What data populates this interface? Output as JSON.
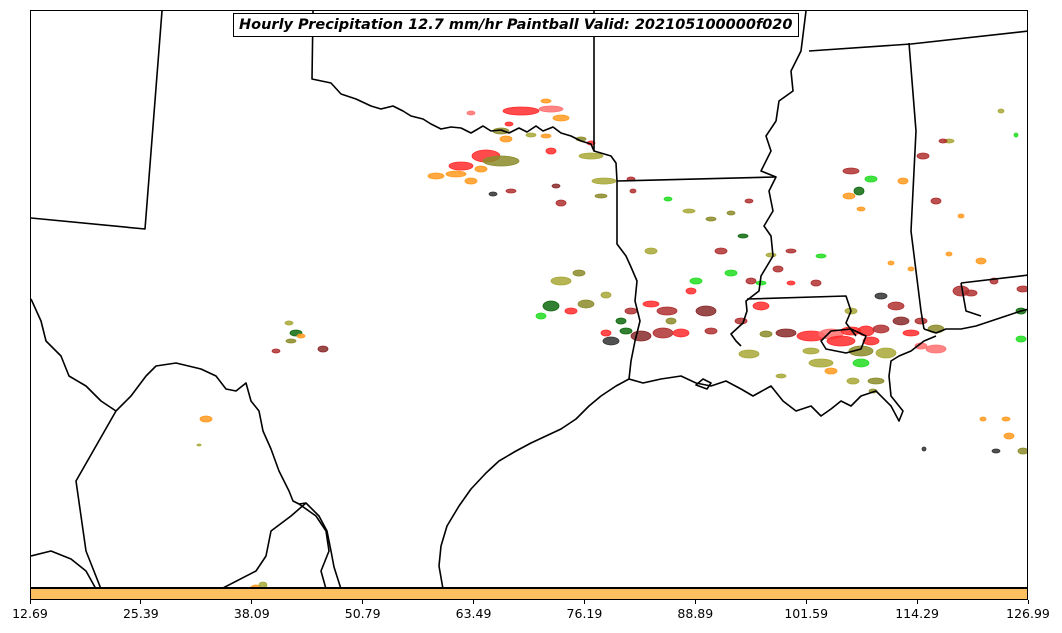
{
  "title": "Hourly Precipitation 12.7 mm/hr Paintball Valid: 202105100000f020",
  "colors": {
    "colorbar_fill": "#fdc060",
    "member_colors": [
      "#ff2b2b",
      "#ff7070",
      "#ff9a1f",
      "#8b8b2a",
      "#a8a838",
      "#22dd22",
      "#0f6a0f",
      "#8a2a2a",
      "#b03030",
      "#333333"
    ]
  },
  "colorbar": {
    "ticks": [
      "12.69",
      "25.39",
      "38.09",
      "50.79",
      "63.49",
      "76.19",
      "88.89",
      "101.59",
      "114.29",
      "126.99"
    ]
  },
  "map": {
    "region": "Southern Plains and Gulf Coast",
    "boundaries": "state outlines and coastline",
    "precipitation_shown": "paintball blobs at 12.7 mm/hr threshold"
  }
}
